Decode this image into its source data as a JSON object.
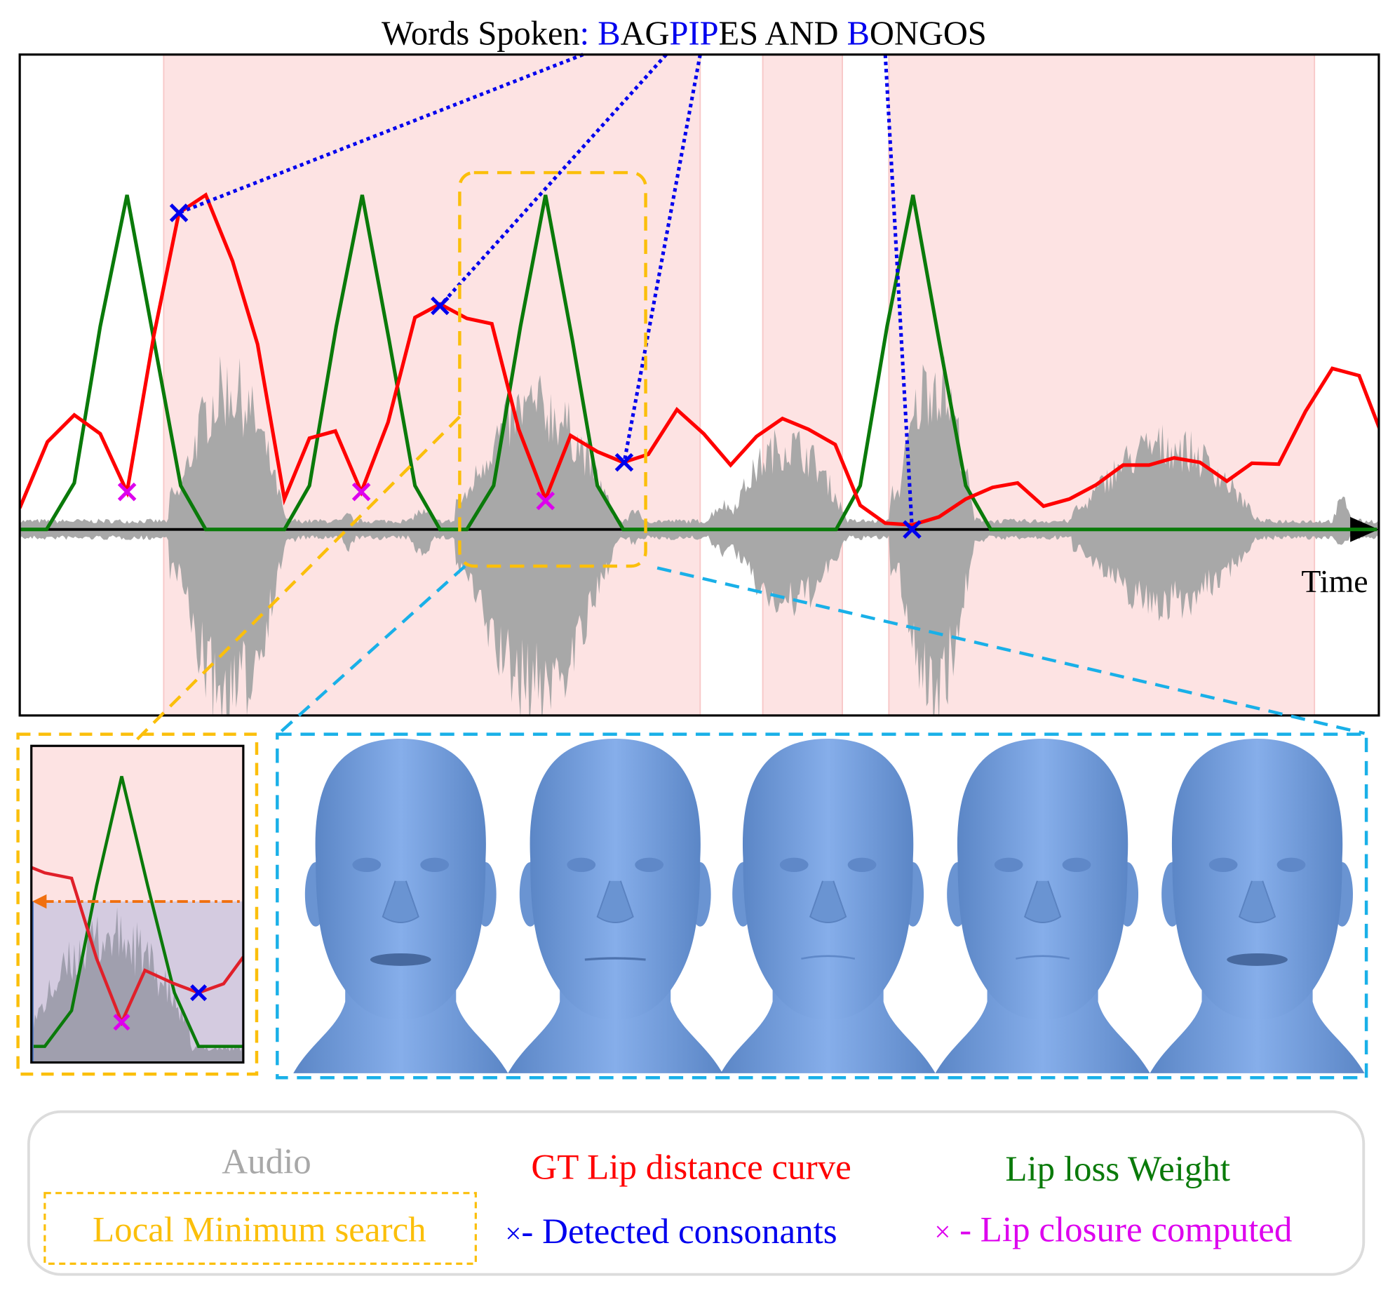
{
  "title": {
    "prefix": "Words Spoken",
    "colon": ":",
    "parts": [
      {
        "text": " B",
        "color": "#0000ee"
      },
      {
        "text": "AG",
        "color": "#000000"
      },
      {
        "text": "PIP",
        "color": "#0000ee"
      },
      {
        "text": "ES AND ",
        "color": "#000000"
      },
      {
        "text": "B",
        "color": "#0000ee"
      },
      {
        "text": "ONGOS",
        "color": "#000000"
      }
    ]
  },
  "axis": {
    "x_label": "Time"
  },
  "legend": {
    "audio": "Audio",
    "gt_curve": "GT Lip distance curve",
    "lip_weight": "Lip loss Weight",
    "local_min": "Local Minimum search",
    "consonant_marker": "×",
    "consonants": "- Detected consonants",
    "closure_marker": "×",
    "closure": " - Lip closure computed"
  },
  "colors": {
    "audio": "#a8a8a8",
    "gt_curve": "#ff0000",
    "lip_weight": "#0a7a0a",
    "local_min": "#fbbf0b",
    "consonants": "#0000ee",
    "closure": "#dd00ee",
    "zoom_box": "#19b0e8",
    "speech_region": "#fde3e3",
    "face": "#6f9bdb"
  },
  "faces": [
    {
      "mouth": "open"
    },
    {
      "mouth": "closed-line"
    },
    {
      "mouth": "closed"
    },
    {
      "mouth": "closed"
    },
    {
      "mouth": "open"
    }
  ]
}
